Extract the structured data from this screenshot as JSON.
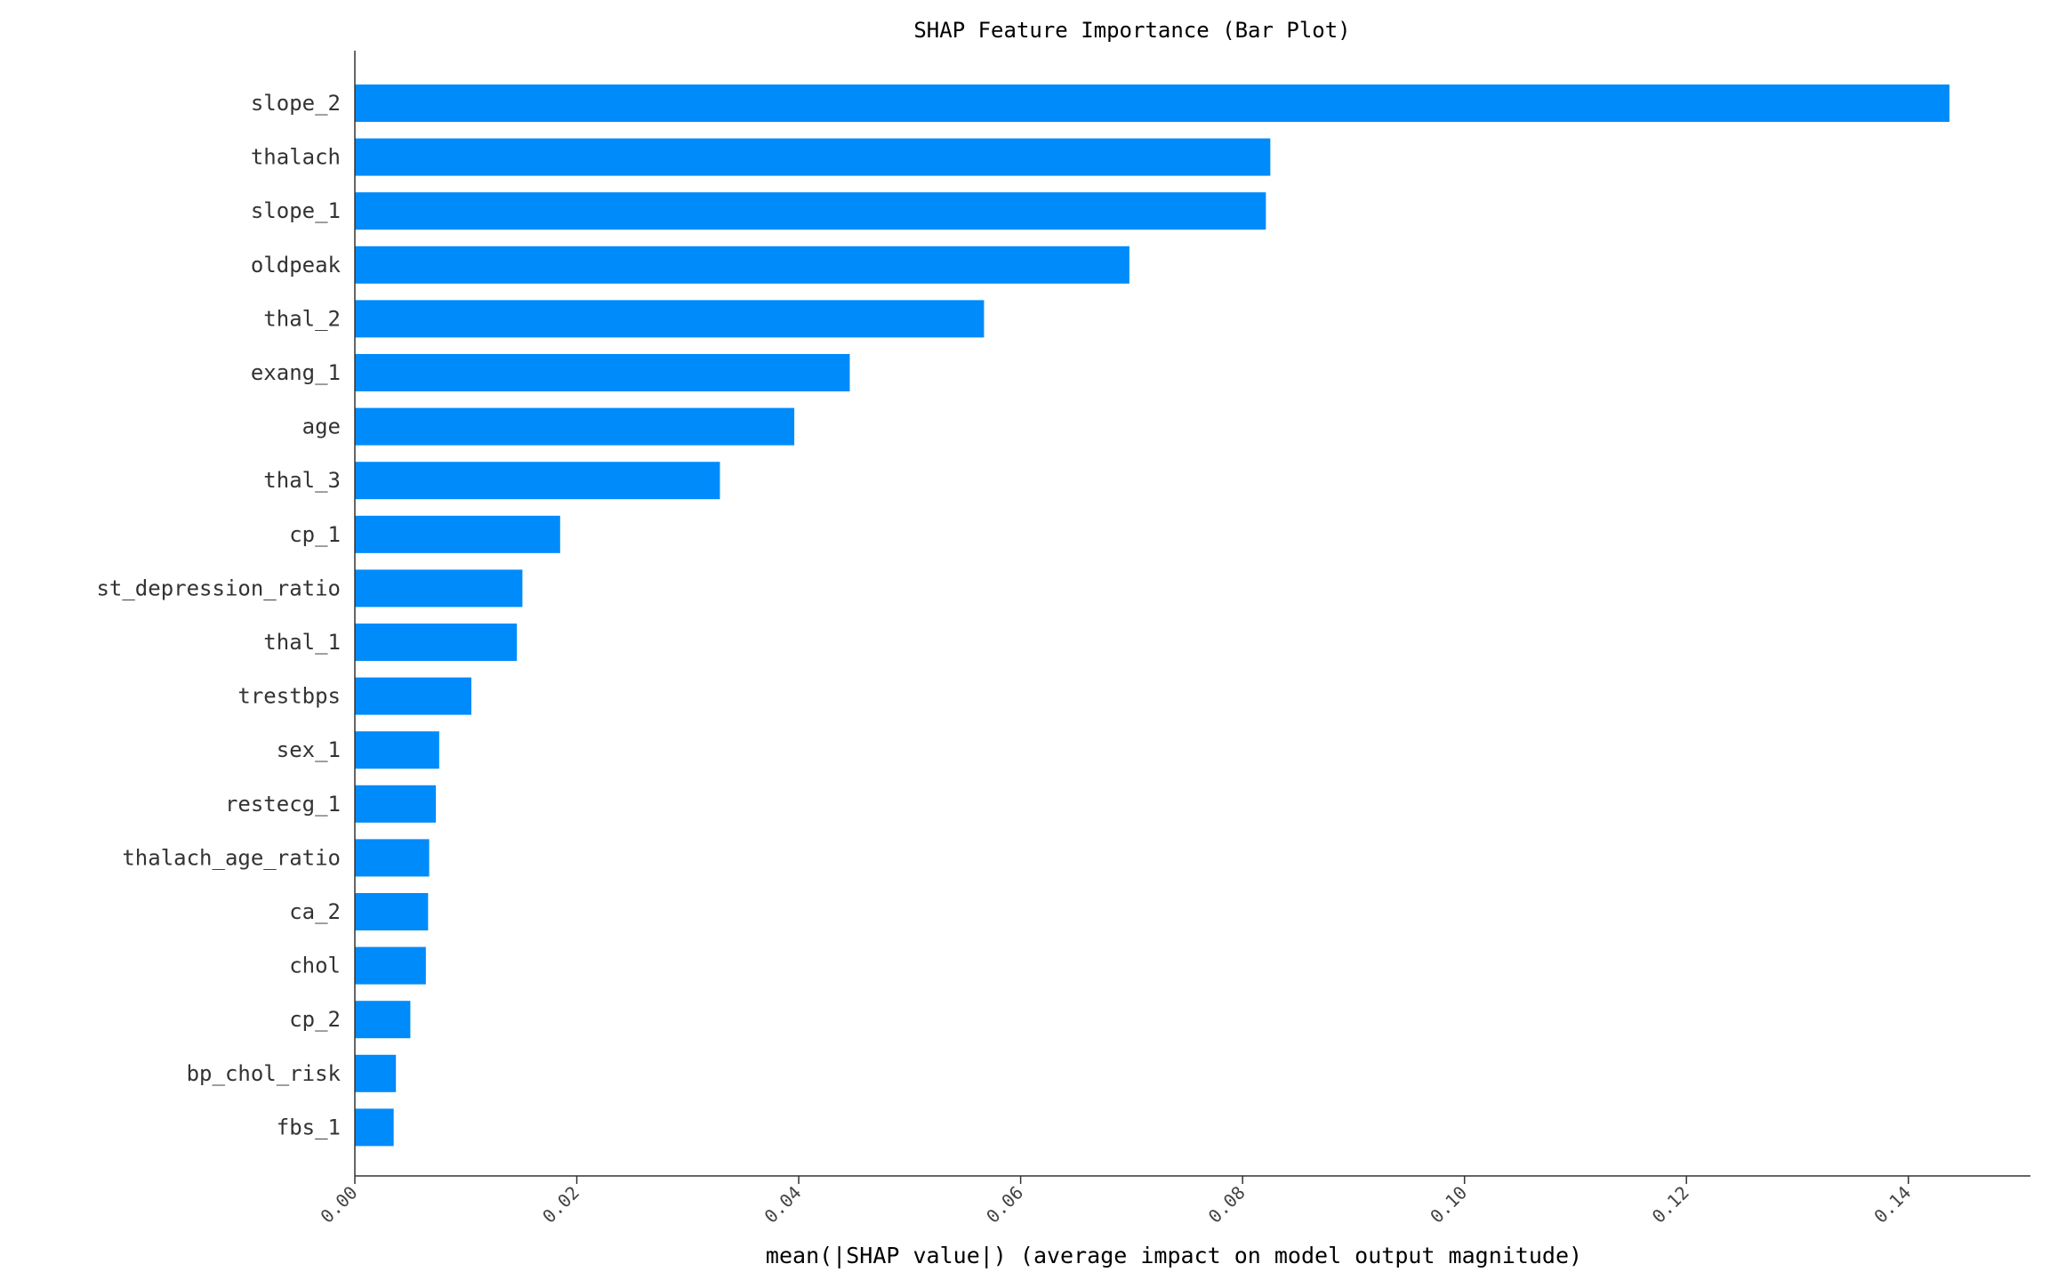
{
  "chart_data": {
    "type": "bar",
    "orientation": "horizontal",
    "title": "SHAP Feature Importance (Bar Plot)",
    "xlabel": "mean(|SHAP value|) (average impact on model output magnitude)",
    "ylabel": "",
    "xlim": [
      0,
      0.151
    ],
    "xticks": [
      "0.00",
      "0.02",
      "0.04",
      "0.06",
      "0.08",
      "0.10",
      "0.12",
      "0.14"
    ],
    "bar_color": "#008bfb",
    "grid": false,
    "categories": [
      "slope_2",
      "thalach",
      "slope_1",
      "oldpeak",
      "thal_2",
      "exang_1",
      "age",
      "thal_3",
      "cp_1",
      "st_depression_ratio",
      "thal_1",
      "trestbps",
      "sex_1",
      "restecg_1",
      "thalach_age_ratio",
      "ca_2",
      "chol",
      "cp_2",
      "bp_chol_risk",
      "fbs_1"
    ],
    "values": [
      0.1437,
      0.0825,
      0.0821,
      0.0698,
      0.0567,
      0.0446,
      0.0396,
      0.0329,
      0.0185,
      0.0151,
      0.0146,
      0.0105,
      0.0076,
      0.0073,
      0.0067,
      0.0066,
      0.0064,
      0.005,
      0.0037,
      0.0035
    ]
  }
}
